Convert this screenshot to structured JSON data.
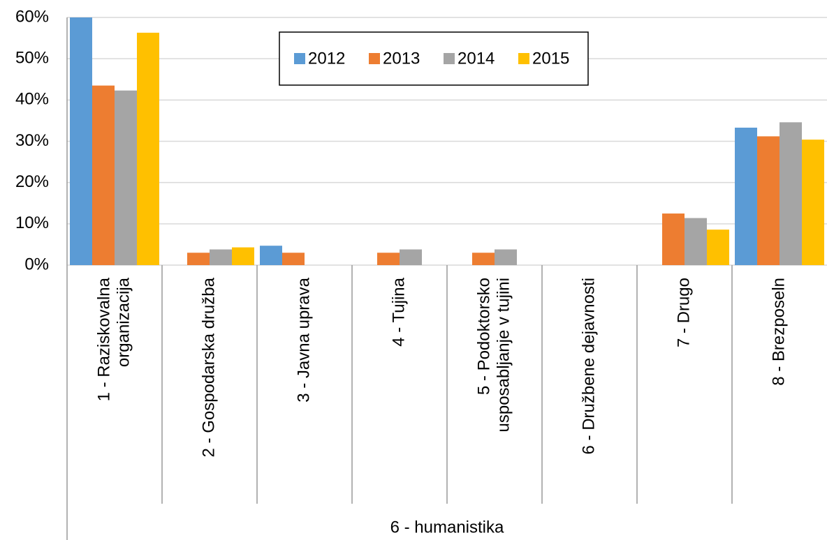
{
  "chart_data": {
    "type": "bar",
    "categories": [
      [
        "1 - Raziskovalna",
        "organizacija"
      ],
      [
        "2 - Gospodarska družba"
      ],
      [
        "3 - Javna uprava"
      ],
      [
        "4 - Tujina"
      ],
      [
        "5 - Podoktorsko",
        "usposabljanje v tujini"
      ],
      [
        "6 - Družbene dejavnosti"
      ],
      [
        "7 - Drugo"
      ],
      [
        "8 - Brezposeln"
      ]
    ],
    "group_label": "6 - humanistika",
    "series": [
      {
        "name": "2012",
        "color": "#5b9bd5",
        "values": [
          60,
          null,
          4.7,
          null,
          null,
          null,
          null,
          33.3
        ]
      },
      {
        "name": "2013",
        "color": "#ed7d31",
        "values": [
          43.5,
          3.0,
          3.0,
          3.0,
          3.0,
          null,
          12.5,
          31.2
        ]
      },
      {
        "name": "2014",
        "color": "#a5a5a5",
        "values": [
          42.3,
          3.8,
          null,
          3.8,
          3.8,
          null,
          11.4,
          34.6
        ]
      },
      {
        "name": "2015",
        "color": "#ffc000",
        "values": [
          56.3,
          4.3,
          null,
          null,
          null,
          null,
          8.6,
          30.4
        ]
      }
    ],
    "ylim": [
      0,
      60
    ],
    "yticks": [
      {
        "value": 0,
        "label": "0%"
      },
      {
        "value": 10,
        "label": "10%"
      },
      {
        "value": 20,
        "label": "20%"
      },
      {
        "value": 30,
        "label": "30%"
      },
      {
        "value": 40,
        "label": "40%"
      },
      {
        "value": 50,
        "label": "50%"
      },
      {
        "value": 60,
        "label": "60%"
      }
    ],
    "grid": true,
    "legend": "top"
  }
}
